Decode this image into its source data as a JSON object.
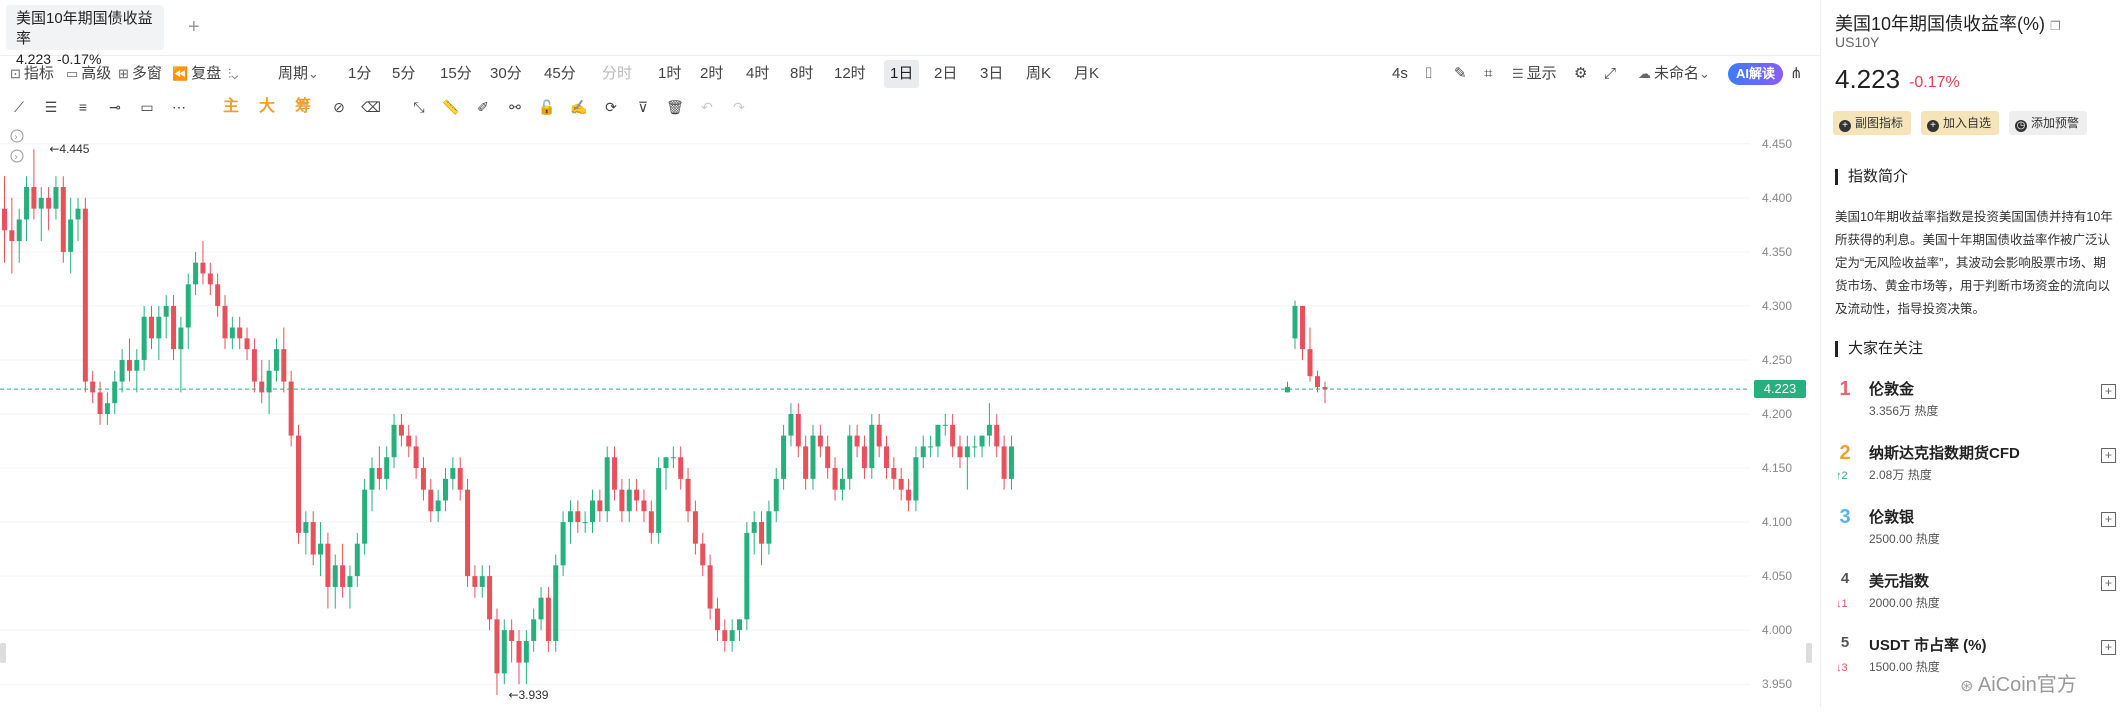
{
  "tab": {
    "title": "美国10年期国债收益率",
    "price": "4.223",
    "change": "-0.17%",
    "add_icon": "+"
  },
  "toolbar": {
    "indicators": "指标",
    "advanced": "高级",
    "multi_window": "多窗",
    "replay": "复盘",
    "period": "周期",
    "periods": [
      "1分",
      "5分",
      "15分",
      "30分",
      "45分",
      "分时",
      "1时",
      "2时",
      "4时",
      "8时",
      "12时",
      "1日",
      "2日",
      "3日",
      "周K",
      "月K"
    ],
    "active_period": "1日",
    "interval": "4s",
    "display": "显示",
    "unnamed": "未命名",
    "ai": "AI解读"
  },
  "drawtools": {
    "main": "主",
    "big": "大",
    "chip": "筹"
  },
  "chart": {
    "current_price": "4.223",
    "high_label": "4.445",
    "low_label": "3.939",
    "y_ticks": [
      "4.450",
      "4.400",
      "4.350",
      "4.300",
      "4.250",
      "4.200",
      "4.150",
      "4.100",
      "4.050",
      "4.000",
      "3.950"
    ],
    "colors": {
      "up": "#26b07e",
      "down": "#e8505b"
    }
  },
  "chart_data": {
    "type": "candlestick",
    "ylim": [
      3.94,
      4.46
    ],
    "current_price": 4.223,
    "candles": [
      [
        4.39,
        4.42,
        4.34,
        4.37
      ],
      [
        4.37,
        4.4,
        4.33,
        4.36
      ],
      [
        4.36,
        4.39,
        4.34,
        4.38
      ],
      [
        4.38,
        4.42,
        4.36,
        4.41
      ],
      [
        4.41,
        4.445,
        4.38,
        4.39
      ],
      [
        4.39,
        4.41,
        4.36,
        4.4
      ],
      [
        4.4,
        4.41,
        4.37,
        4.39
      ],
      [
        4.39,
        4.42,
        4.38,
        4.41
      ],
      [
        4.41,
        4.42,
        4.34,
        4.35
      ],
      [
        4.35,
        4.4,
        4.33,
        4.38
      ],
      [
        4.38,
        4.4,
        4.36,
        4.39
      ],
      [
        4.39,
        4.4,
        4.22,
        4.23
      ],
      [
        4.23,
        4.24,
        4.21,
        4.22
      ],
      [
        4.22,
        4.23,
        4.19,
        4.2
      ],
      [
        4.2,
        4.22,
        4.19,
        4.21
      ],
      [
        4.21,
        4.24,
        4.2,
        4.23
      ],
      [
        4.23,
        4.26,
        4.22,
        4.25
      ],
      [
        4.25,
        4.27,
        4.23,
        4.24
      ],
      [
        4.24,
        4.26,
        4.22,
        4.25
      ],
      [
        4.25,
        4.3,
        4.24,
        4.29
      ],
      [
        4.29,
        4.3,
        4.26,
        4.27
      ],
      [
        4.27,
        4.3,
        4.25,
        4.29
      ],
      [
        4.29,
        4.31,
        4.27,
        4.3
      ],
      [
        4.3,
        4.31,
        4.25,
        4.26
      ],
      [
        4.26,
        4.29,
        4.22,
        4.28
      ],
      [
        4.28,
        4.33,
        4.26,
        4.32
      ],
      [
        4.32,
        4.35,
        4.31,
        4.34
      ],
      [
        4.34,
        4.36,
        4.32,
        4.33
      ],
      [
        4.33,
        4.34,
        4.31,
        4.32
      ],
      [
        4.32,
        4.33,
        4.29,
        4.3
      ],
      [
        4.3,
        4.31,
        4.26,
        4.27
      ],
      [
        4.27,
        4.29,
        4.26,
        4.28
      ],
      [
        4.28,
        4.29,
        4.26,
        4.27
      ],
      [
        4.27,
        4.28,
        4.25,
        4.26
      ],
      [
        4.26,
        4.27,
        4.22,
        4.23
      ],
      [
        4.23,
        4.25,
        4.21,
        4.22
      ],
      [
        4.22,
        4.25,
        4.2,
        4.24
      ],
      [
        4.24,
        4.27,
        4.23,
        4.26
      ],
      [
        4.26,
        4.28,
        4.22,
        4.23
      ],
      [
        4.23,
        4.24,
        4.17,
        4.18
      ],
      [
        4.18,
        4.19,
        4.08,
        4.09
      ],
      [
        4.09,
        4.11,
        4.07,
        4.1
      ],
      [
        4.1,
        4.11,
        4.06,
        4.07
      ],
      [
        4.07,
        4.1,
        4.05,
        4.08
      ],
      [
        4.08,
        4.09,
        4.02,
        4.04
      ],
      [
        4.04,
        4.07,
        4.02,
        4.06
      ],
      [
        4.06,
        4.08,
        4.03,
        4.04
      ],
      [
        4.04,
        4.06,
        4.02,
        4.05
      ],
      [
        4.05,
        4.09,
        4.04,
        4.08
      ],
      [
        4.08,
        4.14,
        4.07,
        4.13
      ],
      [
        4.13,
        4.16,
        4.11,
        4.15
      ],
      [
        4.15,
        4.17,
        4.13,
        4.14
      ],
      [
        4.14,
        4.17,
        4.13,
        4.16
      ],
      [
        4.16,
        4.2,
        4.15,
        4.19
      ],
      [
        4.19,
        4.2,
        4.17,
        4.18
      ],
      [
        4.18,
        4.19,
        4.16,
        4.17
      ],
      [
        4.17,
        4.18,
        4.14,
        4.15
      ],
      [
        4.15,
        4.16,
        4.12,
        4.13
      ],
      [
        4.13,
        4.14,
        4.1,
        4.11
      ],
      [
        4.11,
        4.13,
        4.1,
        4.12
      ],
      [
        4.12,
        4.15,
        4.11,
        4.14
      ],
      [
        4.14,
        4.16,
        4.13,
        4.15
      ],
      [
        4.15,
        4.16,
        4.12,
        4.13
      ],
      [
        4.13,
        4.14,
        4.04,
        4.05
      ],
      [
        4.05,
        4.06,
        4.03,
        4.04
      ],
      [
        4.04,
        4.06,
        4.03,
        4.05
      ],
      [
        4.05,
        4.06,
        4.0,
        4.01
      ],
      [
        4.01,
        4.02,
        3.94,
        3.96
      ],
      [
        3.96,
        4.01,
        3.95,
        4.0
      ],
      [
        4.0,
        4.01,
        3.97,
        3.99
      ],
      [
        3.99,
        4.0,
        3.95,
        3.97
      ],
      [
        3.97,
        4.0,
        3.95,
        3.99
      ],
      [
        3.99,
        4.02,
        3.98,
        4.01
      ],
      [
        4.01,
        4.04,
        4.0,
        4.03
      ],
      [
        4.03,
        4.04,
        3.98,
        3.99
      ],
      [
        3.99,
        4.07,
        3.98,
        4.06
      ],
      [
        4.06,
        4.11,
        4.05,
        4.1
      ],
      [
        4.1,
        4.12,
        4.08,
        4.11
      ],
      [
        4.11,
        4.12,
        4.09,
        4.1
      ],
      [
        4.1,
        4.11,
        4.09,
        4.1
      ],
      [
        4.1,
        4.13,
        4.09,
        4.12
      ],
      [
        4.12,
        4.13,
        4.1,
        4.11
      ],
      [
        4.11,
        4.17,
        4.1,
        4.16
      ],
      [
        4.16,
        4.17,
        4.12,
        4.13
      ],
      [
        4.13,
        4.14,
        4.1,
        4.11
      ],
      [
        4.11,
        4.14,
        4.1,
        4.13
      ],
      [
        4.13,
        4.14,
        4.11,
        4.12
      ],
      [
        4.12,
        4.13,
        4.1,
        4.11
      ],
      [
        4.11,
        4.12,
        4.08,
        4.09
      ],
      [
        4.09,
        4.16,
        4.08,
        4.15
      ],
      [
        4.15,
        4.16,
        4.13,
        4.16
      ],
      [
        4.16,
        4.17,
        4.15,
        4.16
      ],
      [
        4.16,
        4.17,
        4.13,
        4.14
      ],
      [
        4.14,
        4.15,
        4.1,
        4.11
      ],
      [
        4.11,
        4.12,
        4.07,
        4.08
      ],
      [
        4.08,
        4.09,
        4.05,
        4.06
      ],
      [
        4.06,
        4.07,
        4.01,
        4.02
      ],
      [
        4.02,
        4.03,
        3.99,
        4.0
      ],
      [
        4.0,
        4.01,
        3.98,
        3.99
      ],
      [
        3.99,
        4.01,
        3.98,
        4.0
      ],
      [
        4.0,
        4.01,
        3.99,
        4.01
      ],
      [
        4.01,
        4.1,
        4.0,
        4.09
      ],
      [
        4.09,
        4.11,
        4.07,
        4.1
      ],
      [
        4.1,
        4.11,
        4.06,
        4.08
      ],
      [
        4.08,
        4.12,
        4.07,
        4.11
      ],
      [
        4.11,
        4.15,
        4.1,
        4.14
      ],
      [
        4.14,
        4.19,
        4.13,
        4.18
      ],
      [
        4.18,
        4.21,
        4.17,
        4.2
      ],
      [
        4.2,
        4.21,
        4.16,
        4.17
      ],
      [
        4.17,
        4.18,
        4.13,
        4.14
      ],
      [
        4.14,
        4.19,
        4.13,
        4.18
      ],
      [
        4.18,
        4.19,
        4.16,
        4.17
      ],
      [
        4.17,
        4.18,
        4.14,
        4.15
      ],
      [
        4.15,
        4.16,
        4.12,
        4.13
      ],
      [
        4.13,
        4.15,
        4.12,
        4.14
      ],
      [
        4.14,
        4.19,
        4.13,
        4.18
      ],
      [
        4.18,
        4.19,
        4.16,
        4.17
      ],
      [
        4.17,
        4.18,
        4.14,
        4.15
      ],
      [
        4.15,
        4.2,
        4.14,
        4.19
      ],
      [
        4.19,
        4.2,
        4.16,
        4.17
      ],
      [
        4.17,
        4.18,
        4.14,
        4.15
      ],
      [
        4.15,
        4.16,
        4.13,
        4.14
      ],
      [
        4.14,
        4.15,
        4.12,
        4.13
      ],
      [
        4.13,
        4.14,
        4.11,
        4.12
      ],
      [
        4.12,
        4.17,
        4.11,
        4.16
      ],
      [
        4.16,
        4.18,
        4.15,
        4.17
      ],
      [
        4.17,
        4.18,
        4.16,
        4.17
      ],
      [
        4.17,
        4.19,
        4.16,
        4.19
      ],
      [
        4.19,
        4.2,
        4.18,
        4.19
      ],
      [
        4.19,
        4.2,
        4.16,
        4.17
      ],
      [
        4.17,
        4.18,
        4.15,
        4.16
      ],
      [
        4.16,
        4.18,
        4.13,
        4.17
      ],
      [
        4.17,
        4.18,
        4.16,
        4.17
      ],
      [
        4.17,
        4.18,
        4.16,
        4.18
      ],
      [
        4.18,
        4.21,
        4.17,
        4.19
      ],
      [
        4.19,
        4.2,
        4.16,
        4.17
      ],
      [
        4.17,
        4.18,
        4.13,
        4.14
      ],
      [
        4.14,
        4.18,
        4.13,
        4.17
      ],
      [
        4.22,
        4.23,
        4.22,
        4.225
      ],
      [
        4.27,
        4.305,
        4.26,
        4.3
      ],
      [
        4.3,
        4.3,
        4.25,
        4.26
      ],
      [
        4.26,
        4.28,
        4.23,
        4.235
      ],
      [
        4.235,
        4.24,
        4.22,
        4.225
      ],
      [
        4.225,
        4.23,
        4.21,
        4.223
      ]
    ]
  },
  "panel": {
    "title": "美国10年期国债收益率(%)",
    "code": "US10Y",
    "price": "4.223",
    "change": "-0.17%",
    "buttons": [
      "副图指标",
      "加入自选",
      "添加预警"
    ],
    "intro_heading": "指数简介",
    "intro_text": "美国10年期收益率指数是投资美国国债并持有10年所获得的利息。美国十年期国债收益率作被广泛认定为“无风险收益率”，其波动会影响股票市场、期货市场、黄金市场等，用于判断市场资金的流向以及流动性，指导投资决策。",
    "watch_heading": "大家在关注",
    "watchlist": [
      {
        "rank": "1",
        "name": "伦敦金",
        "heat": "3.356万 热度",
        "move": "",
        "color": "#f06070"
      },
      {
        "rank": "2",
        "name": "纳斯达克指数期货CFD",
        "heat": "2.08万 热度",
        "move": "↑2",
        "color": "#f0a030"
      },
      {
        "rank": "3",
        "name": "伦敦银",
        "heat": "2500.00 热度",
        "move": "",
        "color": "#5ab0f0"
      },
      {
        "rank": "4",
        "name": "美元指数",
        "heat": "2000.00 热度",
        "move": "↓1",
        "color": "#555555"
      },
      {
        "rank": "5",
        "name": "USDT 市占率 (%)",
        "heat": "1500.00 热度",
        "move": "↓3",
        "color": "#555555"
      }
    ]
  },
  "watermark": "AiCoin官方"
}
